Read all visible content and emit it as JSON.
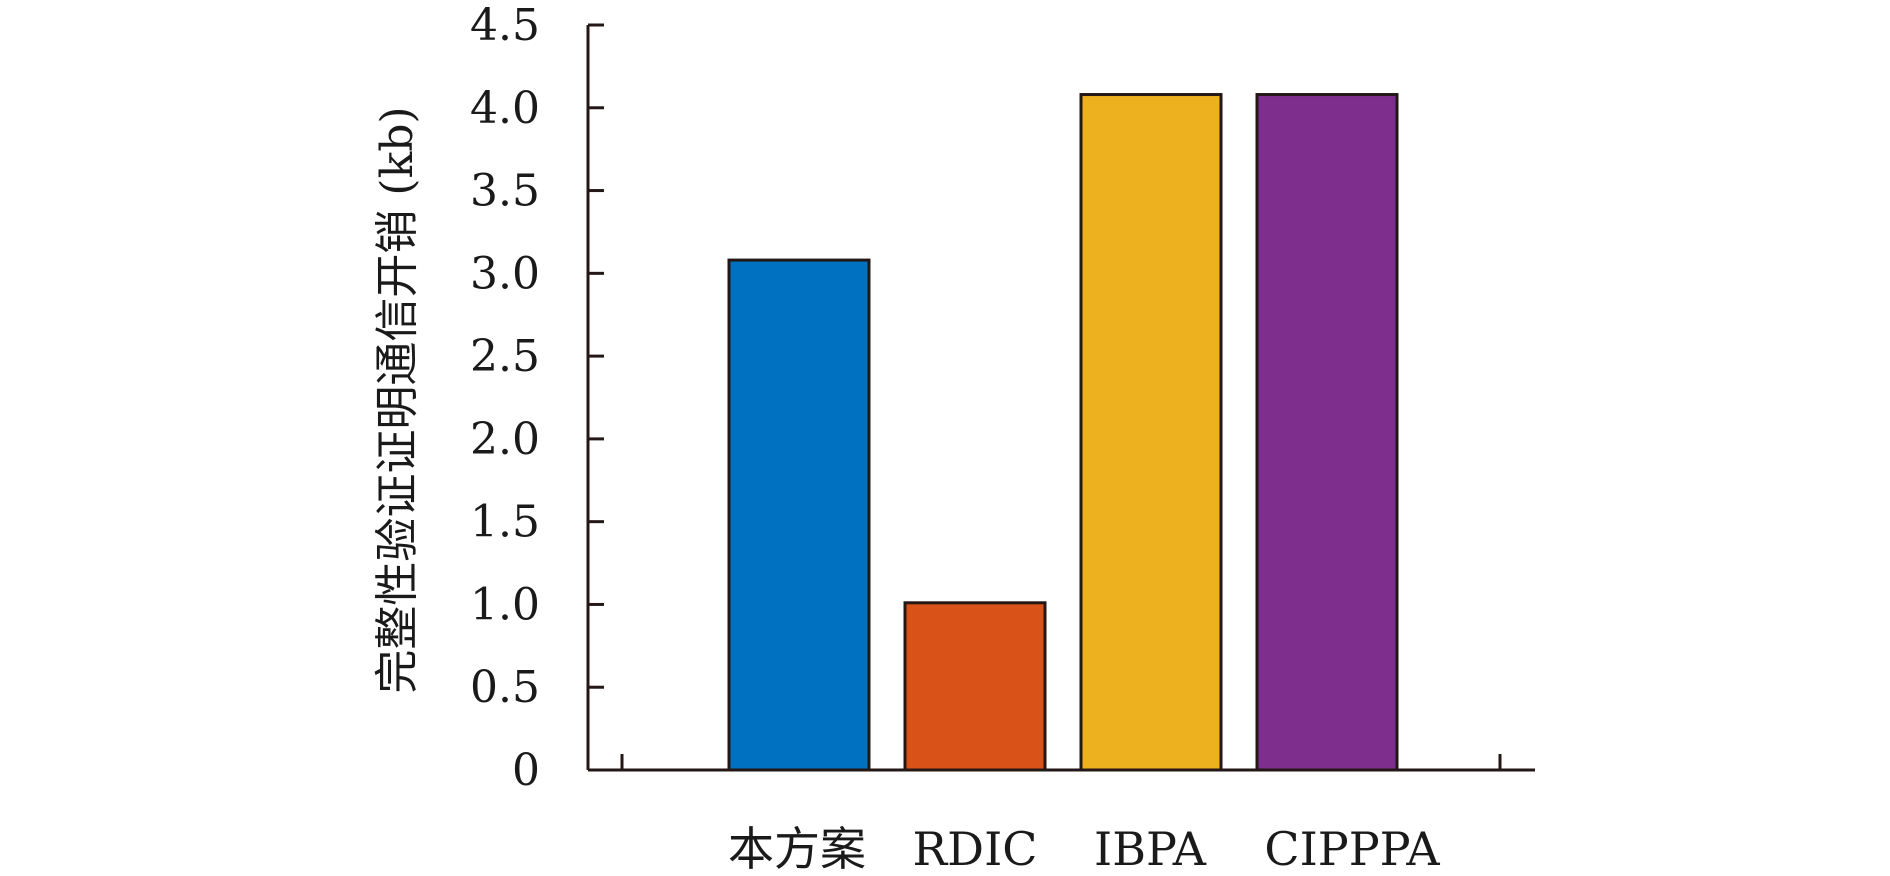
{
  "chart_data": {
    "type": "bar",
    "categories": [
      "本方案",
      "RDIC",
      "IBPA",
      "CIPPPA"
    ],
    "values": [
      3.08,
      1.01,
      4.08,
      4.08
    ],
    "colors": [
      "#0070C0",
      "#D95319",
      "#EDB120",
      "#7E2F8E"
    ],
    "title": "",
    "xlabel": "",
    "ylabel": "完整性验证证明通信开销 (kb)",
    "ylim": [
      0,
      4.5
    ],
    "yticks": [
      "0",
      "0.5",
      "1.0",
      "1.5",
      "2.0",
      "2.5",
      "3.0",
      "3.5",
      "4.0",
      "4.5"
    ],
    "grid": false
  }
}
